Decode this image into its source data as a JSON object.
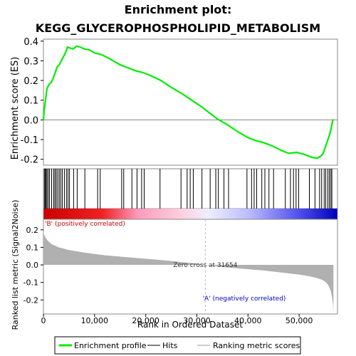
{
  "chart_data": {
    "type": "line",
    "title_line1": "Enrichment plot:",
    "title_line2": "KEGG_GLYCEROPHOSPHOLIPID_METABOLISM",
    "x_axis": {
      "label": "Rank in Ordered Dataset",
      "lim": [
        0,
        57500
      ],
      "ticks": [
        0,
        10000,
        20000,
        30000,
        40000,
        50000
      ],
      "tick_labels": [
        "0",
        "10,000",
        "20,000",
        "30,000",
        "40,000",
        "50,000"
      ]
    },
    "es_panel": {
      "ylabel": "Enrichment score (ES)",
      "ylim": [
        -0.23,
        0.41
      ],
      "ticks": [
        -0.2,
        -0.1,
        0.0,
        0.1,
        0.2,
        0.3,
        0.4
      ],
      "tick_labels": [
        "-0.2",
        "-0.1",
        "0.0",
        "0.1",
        "0.2",
        "0.3",
        "0.4"
      ],
      "series_name": "Enrichment profile",
      "color": "#00ee00",
      "x": [
        0,
        150,
        400,
        700,
        1100,
        1500,
        1900,
        2300,
        2700,
        3100,
        3500,
        3900,
        4300,
        4700,
        5200,
        5800,
        6500,
        7200,
        8000,
        9000,
        10000,
        10800,
        11500,
        13000,
        15000,
        16500,
        18000,
        19500,
        21000,
        23000,
        25000,
        27000,
        29000,
        31000,
        32500,
        34000,
        36000,
        38000,
        40000,
        41500,
        43000,
        45000,
        46500,
        48000,
        49500,
        51000,
        52500,
        53500,
        54200,
        54700,
        55100,
        55500,
        55900,
        56200,
        56400,
        56600,
        56700
      ],
      "y": [
        0.0,
        0.05,
        0.1,
        0.16,
        0.18,
        0.19,
        0.21,
        0.24,
        0.27,
        0.28,
        0.3,
        0.32,
        0.34,
        0.37,
        0.365,
        0.36,
        0.375,
        0.37,
        0.36,
        0.355,
        0.34,
        0.335,
        0.33,
        0.31,
        0.28,
        0.265,
        0.25,
        0.24,
        0.225,
        0.2,
        0.165,
        0.135,
        0.1,
        0.065,
        0.035,
        0.005,
        -0.025,
        -0.06,
        -0.09,
        -0.105,
        -0.115,
        -0.135,
        -0.155,
        -0.17,
        -0.165,
        -0.175,
        -0.19,
        -0.195,
        -0.185,
        -0.17,
        -0.14,
        -0.11,
        -0.08,
        -0.05,
        -0.025,
        0.0,
        0.0
      ]
    },
    "hits": [
      180,
      360,
      520,
      700,
      950,
      1200,
      1600,
      2000,
      2250,
      2500,
      2800,
      3100,
      3400,
      3700,
      4100,
      4500,
      4800,
      5100,
      5900,
      6600,
      8100,
      10600,
      11100,
      15300,
      15700,
      17300,
      18300,
      19200,
      19700,
      22800,
      26900,
      28100,
      28700,
      29300,
      31000,
      32600,
      33700,
      34200,
      35300,
      36200,
      39800,
      40700,
      41200,
      41700,
      42700,
      43300,
      44100,
      45000,
      47300,
      48300,
      48900,
      49400,
      49900,
      52000,
      53100,
      54000,
      54400,
      54900,
      55200,
      55600,
      55900,
      56200,
      56400
    ],
    "metric_panel": {
      "ylabel": "Ranked list metric (Signal2Noise)",
      "ylim": [
        -0.28,
        0.26
      ],
      "ticks": [
        -0.2,
        -0.1,
        0.0,
        0.1,
        0.2
      ],
      "tick_labels": [
        "-0.2",
        "-0.1",
        "0.0",
        "0.1",
        "0.2"
      ],
      "color": "#b0b0b0",
      "x": [
        0,
        50,
        300,
        800,
        1500,
        3000,
        5000,
        8000,
        12000,
        16000,
        20000,
        24000,
        28000,
        31654,
        35000,
        39000,
        43000,
        47000,
        50000,
        52000,
        53500,
        54500,
        55300,
        55800,
        56200,
        56400,
        56600,
        56700
      ],
      "y": [
        0.22,
        0.18,
        0.16,
        0.14,
        0.12,
        0.1,
        0.085,
        0.07,
        0.055,
        0.045,
        0.035,
        0.025,
        0.013,
        0.0,
        -0.012,
        -0.022,
        -0.032,
        -0.045,
        -0.055,
        -0.065,
        -0.075,
        -0.085,
        -0.1,
        -0.12,
        -0.15,
        -0.18,
        -0.22,
        -0.26
      ]
    },
    "zero_cross": 31654,
    "zero_cross_label": "Zero cross at 31654",
    "pos_label": "'B' (positively correlated)",
    "neg_label": "'A' (negatively correlated)",
    "legend": {
      "position": "bottom",
      "items": [
        "Enrichment profile",
        "Hits",
        "Ranking metric scores"
      ]
    },
    "colors": {
      "es_line": "#00ee00",
      "hit_line": "#000000",
      "metric_fill": "#b0b0b0",
      "heat_positive": "#ee0000",
      "heat_negative": "#0000ee",
      "pos_label": "#cc0000",
      "neg_label": "#0000cc",
      "zero_cross_line": "#bbbbbb"
    }
  }
}
